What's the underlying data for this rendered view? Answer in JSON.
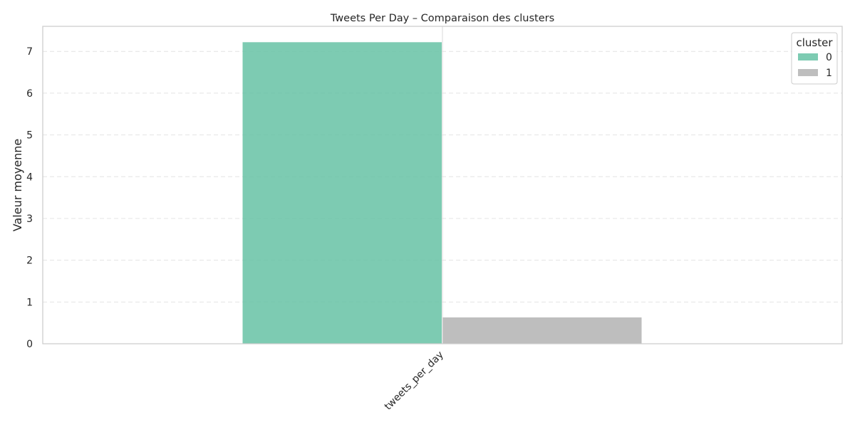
{
  "chart_data": {
    "type": "bar",
    "title": "Tweets Per Day – Comparaison des clusters",
    "xlabel": "",
    "ylabel": "Valeur moyenne",
    "categories": [
      "tweets_per_day"
    ],
    "series": [
      {
        "name": "0",
        "values": [
          7.22
        ],
        "color": "#66c2a5"
      },
      {
        "name": "1",
        "values": [
          0.63
        ],
        "color": "#b3b3b3"
      }
    ],
    "ylim": [
      0,
      7.6
    ],
    "yticks": [
      0,
      1,
      2,
      3,
      4,
      5,
      6,
      7
    ],
    "grid": true,
    "legend": {
      "title": "cluster",
      "placement": "top-right"
    }
  }
}
